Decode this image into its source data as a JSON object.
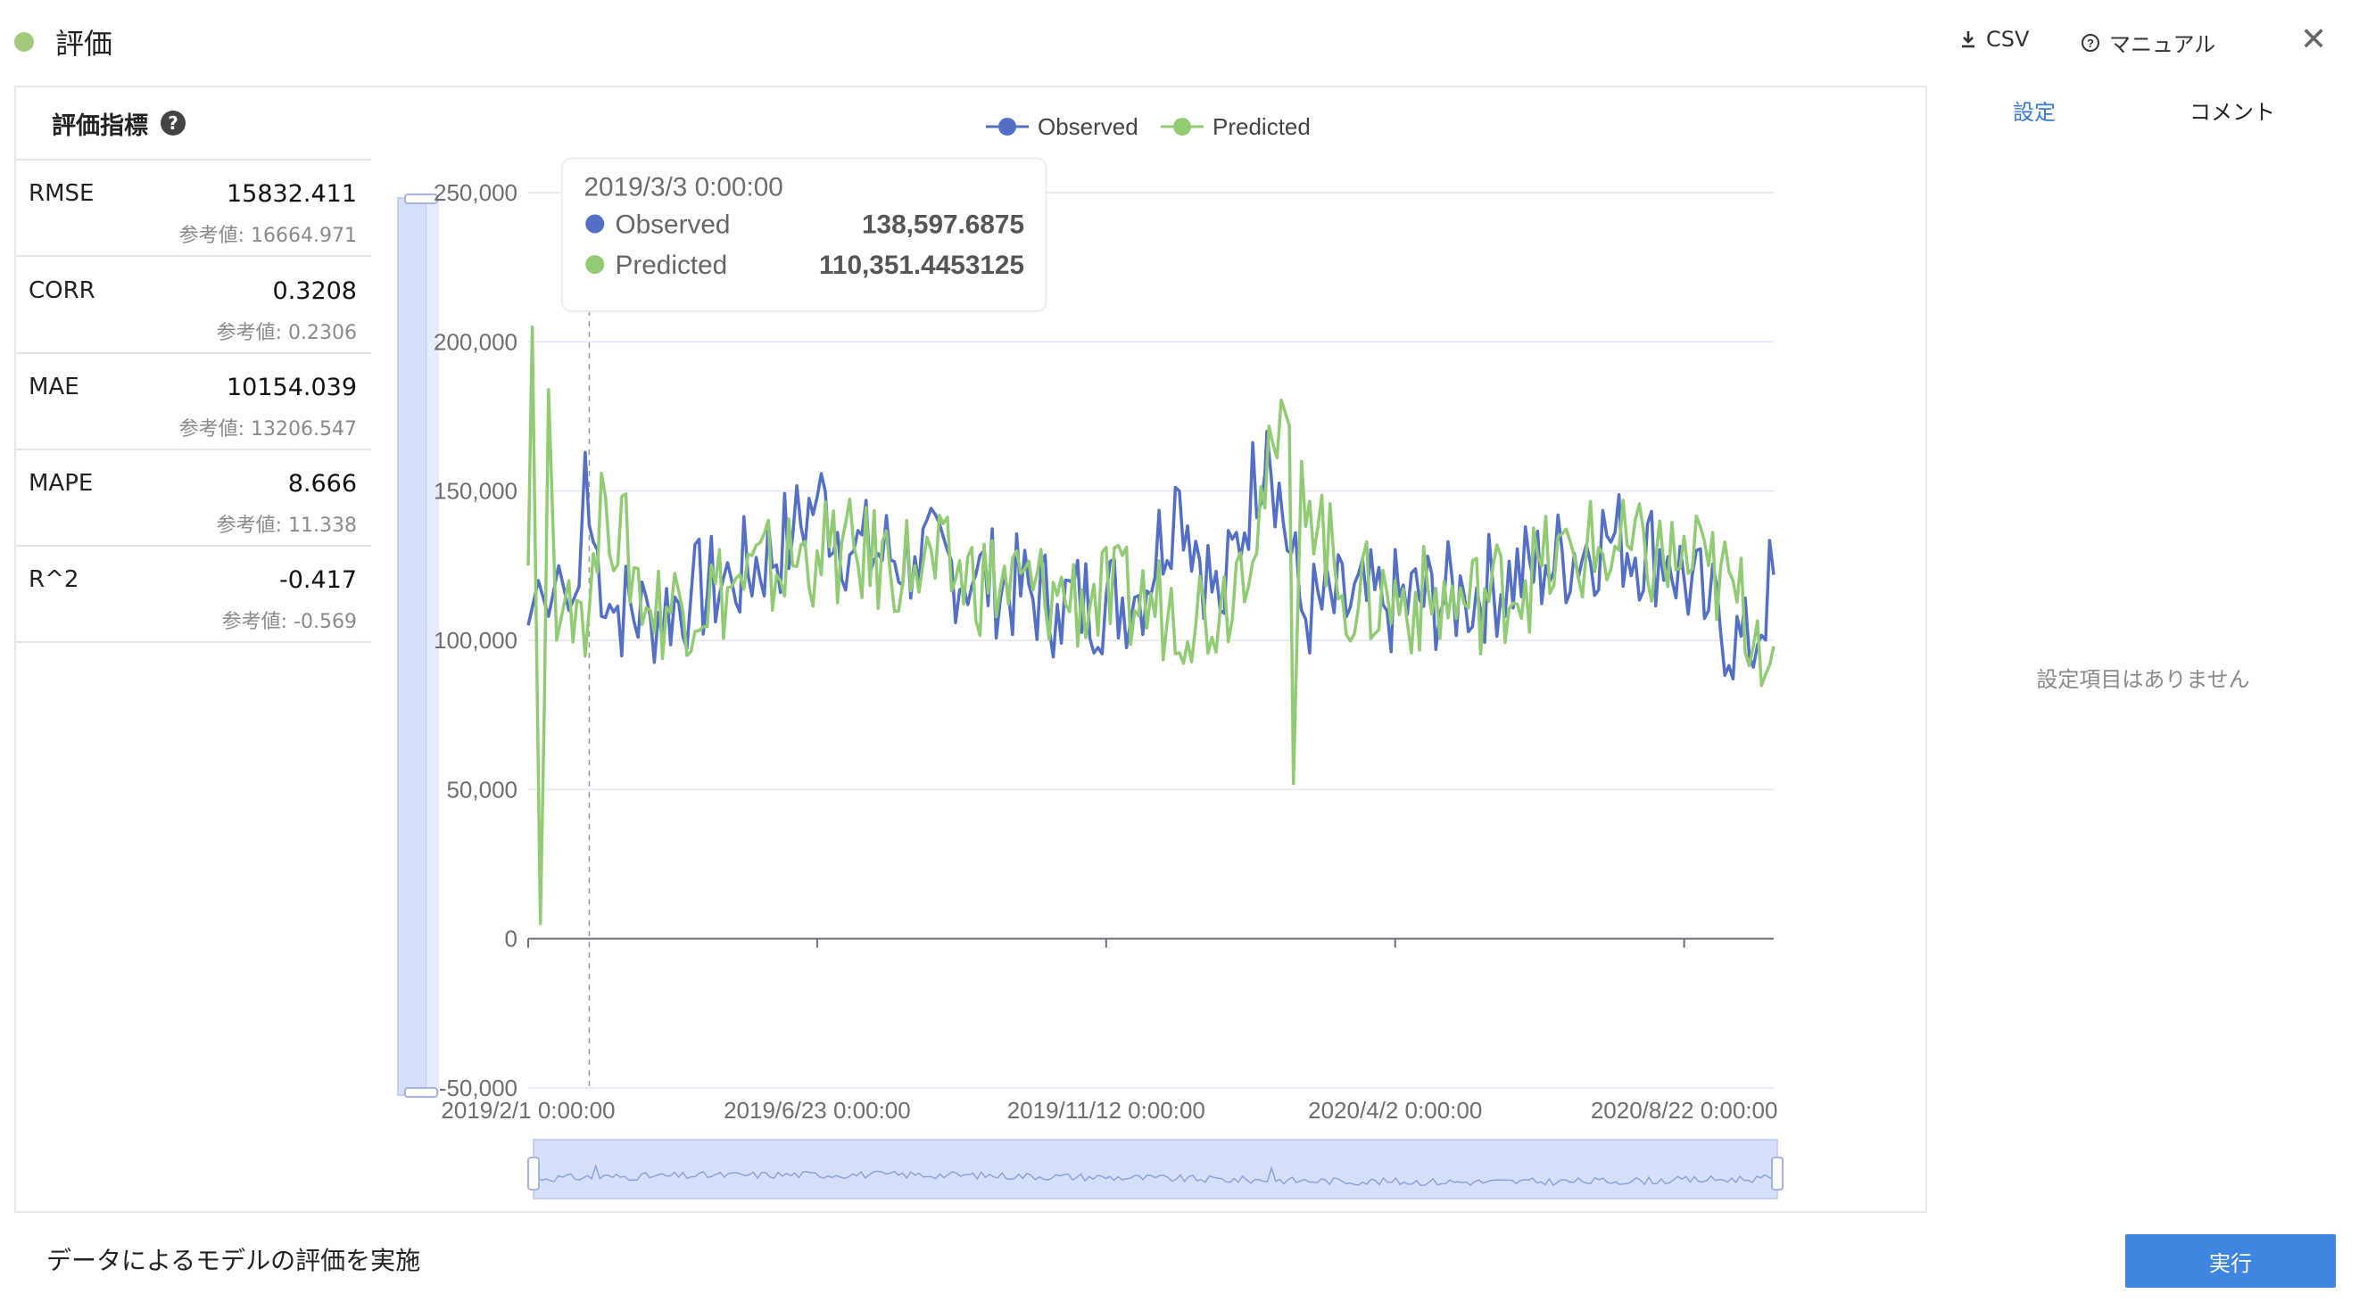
{
  "header": {
    "title": "評価",
    "csv_label": "CSV",
    "manual_label": "マニュアル",
    "status_color": "#a3c97a"
  },
  "metrics": {
    "title": "評価指標",
    "items": [
      {
        "name": "RMSE",
        "value": "15832.411",
        "ref": "参考値: 16664.971"
      },
      {
        "name": "CORR",
        "value": "0.3208",
        "ref": "参考値: 0.2306"
      },
      {
        "name": "MAE",
        "value": "10154.039",
        "ref": "参考値: 13206.547"
      },
      {
        "name": "MAPE",
        "value": "8.666",
        "ref": "参考値: 11.338"
      },
      {
        "name": "R^2",
        "value": "-0.417",
        "ref": "参考値: -0.569"
      }
    ]
  },
  "chart_data": {
    "type": "line",
    "legend_position": "top-center",
    "grid": true,
    "x_range": [
      "2019/2/1",
      "2020/9/30"
    ],
    "ylim": [
      -50000,
      250000
    ],
    "y_ticks": [
      "250,000",
      "200,000",
      "150,000",
      "100,000",
      "50,000",
      "0",
      "-50,000"
    ],
    "y_tick_values": [
      250000,
      200000,
      150000,
      100000,
      50000,
      0,
      -50000
    ],
    "x_ticks": [
      "2019/2/1 0:00:00",
      "2019/6/23 0:00:00",
      "2019/11/12 0:00:00",
      "2020/4/2 0:00:00",
      "2020/8/22 0:00:00"
    ],
    "x_tick_days": [
      0,
      142,
      284,
      426,
      568
    ],
    "series": [
      {
        "name": "Observed",
        "color": "#5470c6",
        "points": [
          {
            "day": 0,
            "value": 105000
          },
          {
            "day": 5,
            "value": 120000
          },
          {
            "day": 10,
            "value": 108000
          },
          {
            "day": 15,
            "value": 125000
          },
          {
            "day": 20,
            "value": 110000
          },
          {
            "day": 25,
            "value": 118000
          },
          {
            "day": 28,
            "value": 163000
          },
          {
            "day": 30,
            "value": 138598
          },
          {
            "day": 40,
            "value": 112000
          },
          {
            "day": 60,
            "value": 108000
          },
          {
            "day": 80,
            "value": 115000
          },
          {
            "day": 100,
            "value": 120000
          },
          {
            "day": 130,
            "value": 135000
          },
          {
            "day": 142,
            "value": 148000
          },
          {
            "day": 160,
            "value": 130000
          },
          {
            "day": 190,
            "value": 128000
          },
          {
            "day": 220,
            "value": 122000
          },
          {
            "day": 260,
            "value": 112000
          },
          {
            "day": 300,
            "value": 115000
          },
          {
            "day": 320,
            "value": 150000
          },
          {
            "day": 340,
            "value": 110000
          },
          {
            "day": 363,
            "value": 170000
          },
          {
            "day": 380,
            "value": 110000
          },
          {
            "day": 420,
            "value": 112000
          },
          {
            "day": 460,
            "value": 115000
          },
          {
            "day": 500,
            "value": 125000
          },
          {
            "day": 530,
            "value": 135000
          },
          {
            "day": 560,
            "value": 128000
          },
          {
            "day": 580,
            "value": 110000
          },
          {
            "day": 600,
            "value": 95000
          },
          {
            "day": 612,
            "value": 122000
          }
        ]
      },
      {
        "name": "Predicted",
        "color": "#91cc75",
        "points": [
          {
            "day": 0,
            "value": 125000
          },
          {
            "day": 2,
            "value": 205000
          },
          {
            "day": 6,
            "value": 5000
          },
          {
            "day": 8,
            "value": 80000
          },
          {
            "day": 10,
            "value": 184000
          },
          {
            "day": 14,
            "value": 100000
          },
          {
            "day": 20,
            "value": 120000
          },
          {
            "day": 30,
            "value": 110351
          },
          {
            "day": 38,
            "value": 148000
          },
          {
            "day": 60,
            "value": 110000
          },
          {
            "day": 100,
            "value": 118000
          },
          {
            "day": 142,
            "value": 130000
          },
          {
            "day": 190,
            "value": 125000
          },
          {
            "day": 260,
            "value": 115000
          },
          {
            "day": 340,
            "value": 110000
          },
          {
            "day": 374,
            "value": 172000
          },
          {
            "day": 376,
            "value": 52000
          },
          {
            "day": 380,
            "value": 160000
          },
          {
            "day": 400,
            "value": 115000
          },
          {
            "day": 460,
            "value": 112000
          },
          {
            "day": 520,
            "value": 130000
          },
          {
            "day": 580,
            "value": 125000
          },
          {
            "day": 612,
            "value": 98000
          }
        ]
      }
    ],
    "tooltip": {
      "date": "2019/3/3 0:00:00",
      "rows": [
        {
          "name": "Observed",
          "value": "138,597.6875",
          "color": "#5470c6"
        },
        {
          "name": "Predicted",
          "value": "110,351.4453125",
          "color": "#91cc75"
        }
      ]
    },
    "crosshair_day": 30
  },
  "side_panel": {
    "tab_settings": "設定",
    "tab_comment": "コメント",
    "empty_message": "設定項目はありません"
  },
  "footer": {
    "description": "データによるモデルの評価を実施",
    "run_label": "実行"
  },
  "icons": {
    "download": "download-icon",
    "help": "help-circle-icon",
    "close": "close-icon"
  }
}
